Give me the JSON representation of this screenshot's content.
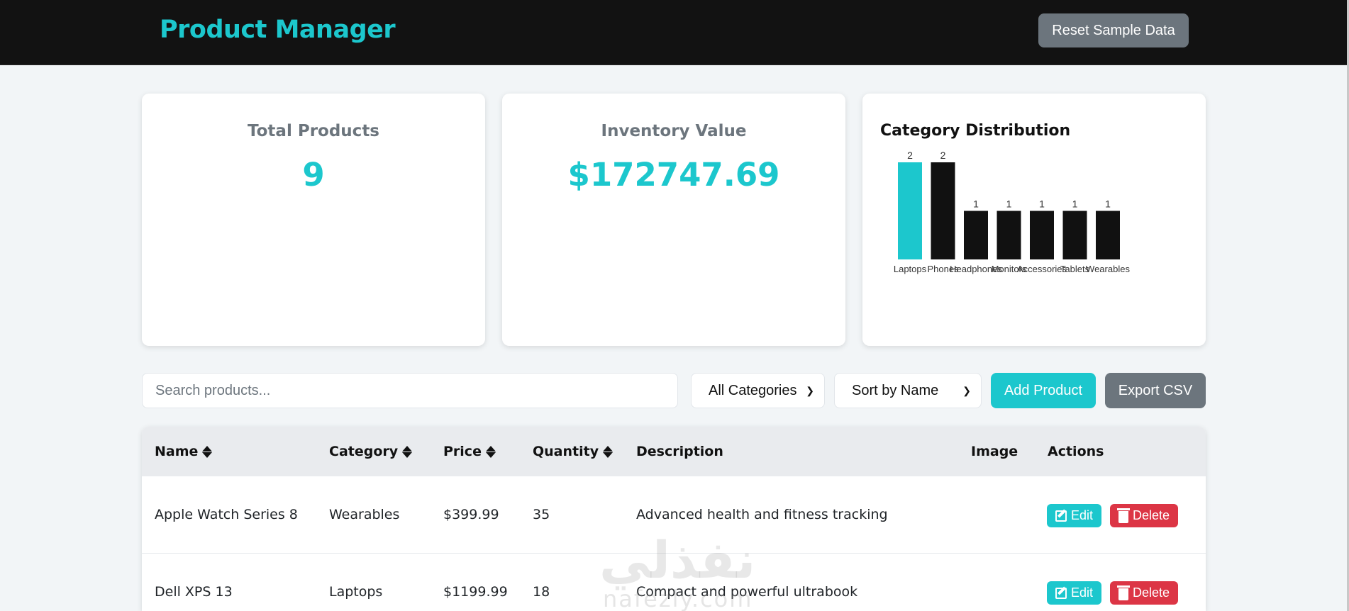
{
  "header": {
    "title": "Product Manager",
    "reset_label": "Reset Sample Data"
  },
  "stats": {
    "total_products": {
      "title": "Total Products",
      "value": "9"
    },
    "inventory_value": {
      "title": "Inventory Value",
      "value": "$172747.69"
    },
    "category_chart_title": "Category Distribution"
  },
  "chart_data": {
    "type": "bar",
    "title": "Category Distribution",
    "categories": [
      "Laptops",
      "Phones",
      "Headphones",
      "Monitors",
      "Accessories",
      "Tablets",
      "Wearables"
    ],
    "values": [
      2,
      2,
      1,
      1,
      1,
      1,
      1
    ],
    "ylim": [
      0,
      2
    ],
    "grid": false,
    "colors": [
      "#1cc7cd",
      "#111111",
      "#111111",
      "#111111",
      "#111111",
      "#111111",
      "#111111"
    ]
  },
  "toolbar": {
    "search_placeholder": "Search products...",
    "category_select": "All Categories",
    "sort_select": "Sort by Name",
    "add_label": "Add Product",
    "export_label": "Export CSV"
  },
  "table": {
    "headers": {
      "name": "Name",
      "category": "Category",
      "price": "Price",
      "quantity": "Quantity",
      "description": "Description",
      "image": "Image",
      "actions": "Actions"
    },
    "rows": [
      {
        "name": "Apple Watch Series 8",
        "category": "Wearables",
        "price": "$399.99",
        "quantity": "35",
        "description": "Advanced health and fitness tracking"
      },
      {
        "name": "Dell XPS 13",
        "category": "Laptops",
        "price": "$1199.99",
        "quantity": "18",
        "description": "Compact and powerful ultrabook"
      }
    ],
    "edit_label": "Edit",
    "delete_label": "Delete"
  },
  "watermark": {
    "arabic": "نفذلي",
    "latin": "nafezly.com"
  },
  "theme": {
    "accent": "#1cc7cd",
    "secondary": "#6c757d",
    "danger": "#dc3545",
    "navbar": "#121212"
  }
}
